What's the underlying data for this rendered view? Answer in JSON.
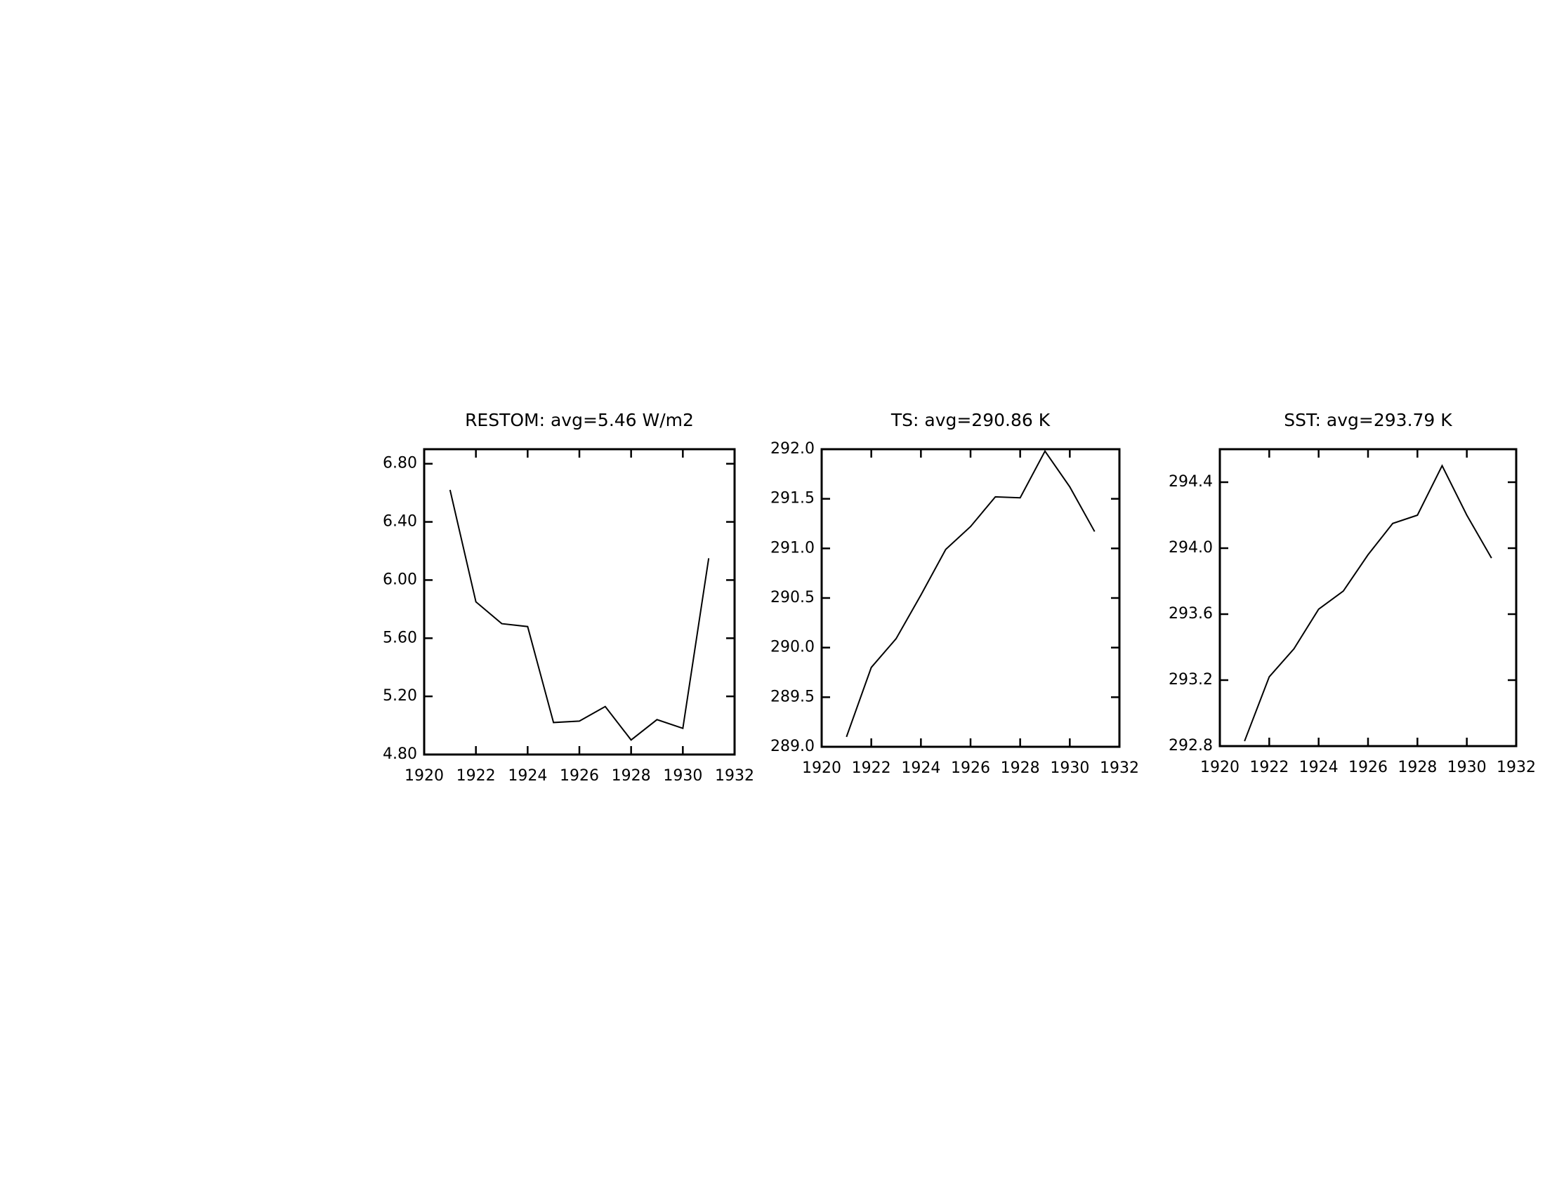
{
  "chart_data": [
    {
      "type": "line",
      "title": "RESTOM: avg=5.46 W/m2",
      "x": [
        1921,
        1922,
        1923,
        1924,
        1925,
        1926,
        1927,
        1928,
        1929,
        1930,
        1931
      ],
      "values": [
        6.62,
        5.85,
        5.7,
        5.68,
        5.02,
        5.03,
        5.13,
        4.9,
        5.04,
        4.98,
        6.15
      ],
      "color": "#000000",
      "xlim": [
        1920,
        1932
      ],
      "xticks": [
        1920,
        1922,
        1924,
        1926,
        1928,
        1930,
        1932
      ],
      "ylim": [
        4.8,
        6.9
      ],
      "yticks": [
        {
          "value": 4.8,
          "label": "4.80"
        },
        {
          "value": 5.2,
          "label": "5.20"
        },
        {
          "value": 5.6,
          "label": "5.60"
        },
        {
          "value": 6.0,
          "label": "6.00"
        },
        {
          "value": 6.4,
          "label": "6.40"
        },
        {
          "value": 6.8,
          "label": "6.80"
        }
      ]
    },
    {
      "type": "line",
      "title": "TS: avg=290.86 K",
      "x": [
        1921,
        1922,
        1923,
        1924,
        1925,
        1926,
        1927,
        1928,
        1929,
        1930,
        1931
      ],
      "values": [
        289.1,
        289.8,
        290.09,
        290.53,
        290.99,
        291.22,
        291.52,
        291.51,
        291.98,
        291.62,
        291.17
      ],
      "color": "#000000",
      "xlim": [
        1920,
        1932
      ],
      "xticks": [
        1920,
        1922,
        1924,
        1926,
        1928,
        1930,
        1932
      ],
      "ylim": [
        289.0,
        292.0
      ],
      "yticks": [
        {
          "value": 289.0,
          "label": "289.0"
        },
        289.5,
        {
          "value": 290.0,
          "label": "290.0"
        },
        290.5,
        {
          "value": 291.0,
          "label": "291.0"
        },
        291.5,
        {
          "value": 292.0,
          "label": "292.0"
        }
      ]
    },
    {
      "type": "line",
      "title": "SST: avg=293.79 K",
      "x": [
        1921,
        1922,
        1923,
        1924,
        1925,
        1926,
        1927,
        1928,
        1929,
        1930,
        1931
      ],
      "values": [
        292.83,
        293.22,
        293.39,
        293.63,
        293.74,
        293.96,
        294.15,
        294.2,
        294.5,
        294.2,
        293.94
      ],
      "color": "#000000",
      "xlim": [
        1920,
        1932
      ],
      "xticks": [
        1920,
        1922,
        1924,
        1926,
        1928,
        1930,
        1932
      ],
      "ylim": [
        292.8,
        294.6
      ],
      "yticks": [
        292.8,
        293.2,
        293.6,
        {
          "value": 294.0,
          "label": "294.0"
        },
        294.4
      ]
    }
  ]
}
